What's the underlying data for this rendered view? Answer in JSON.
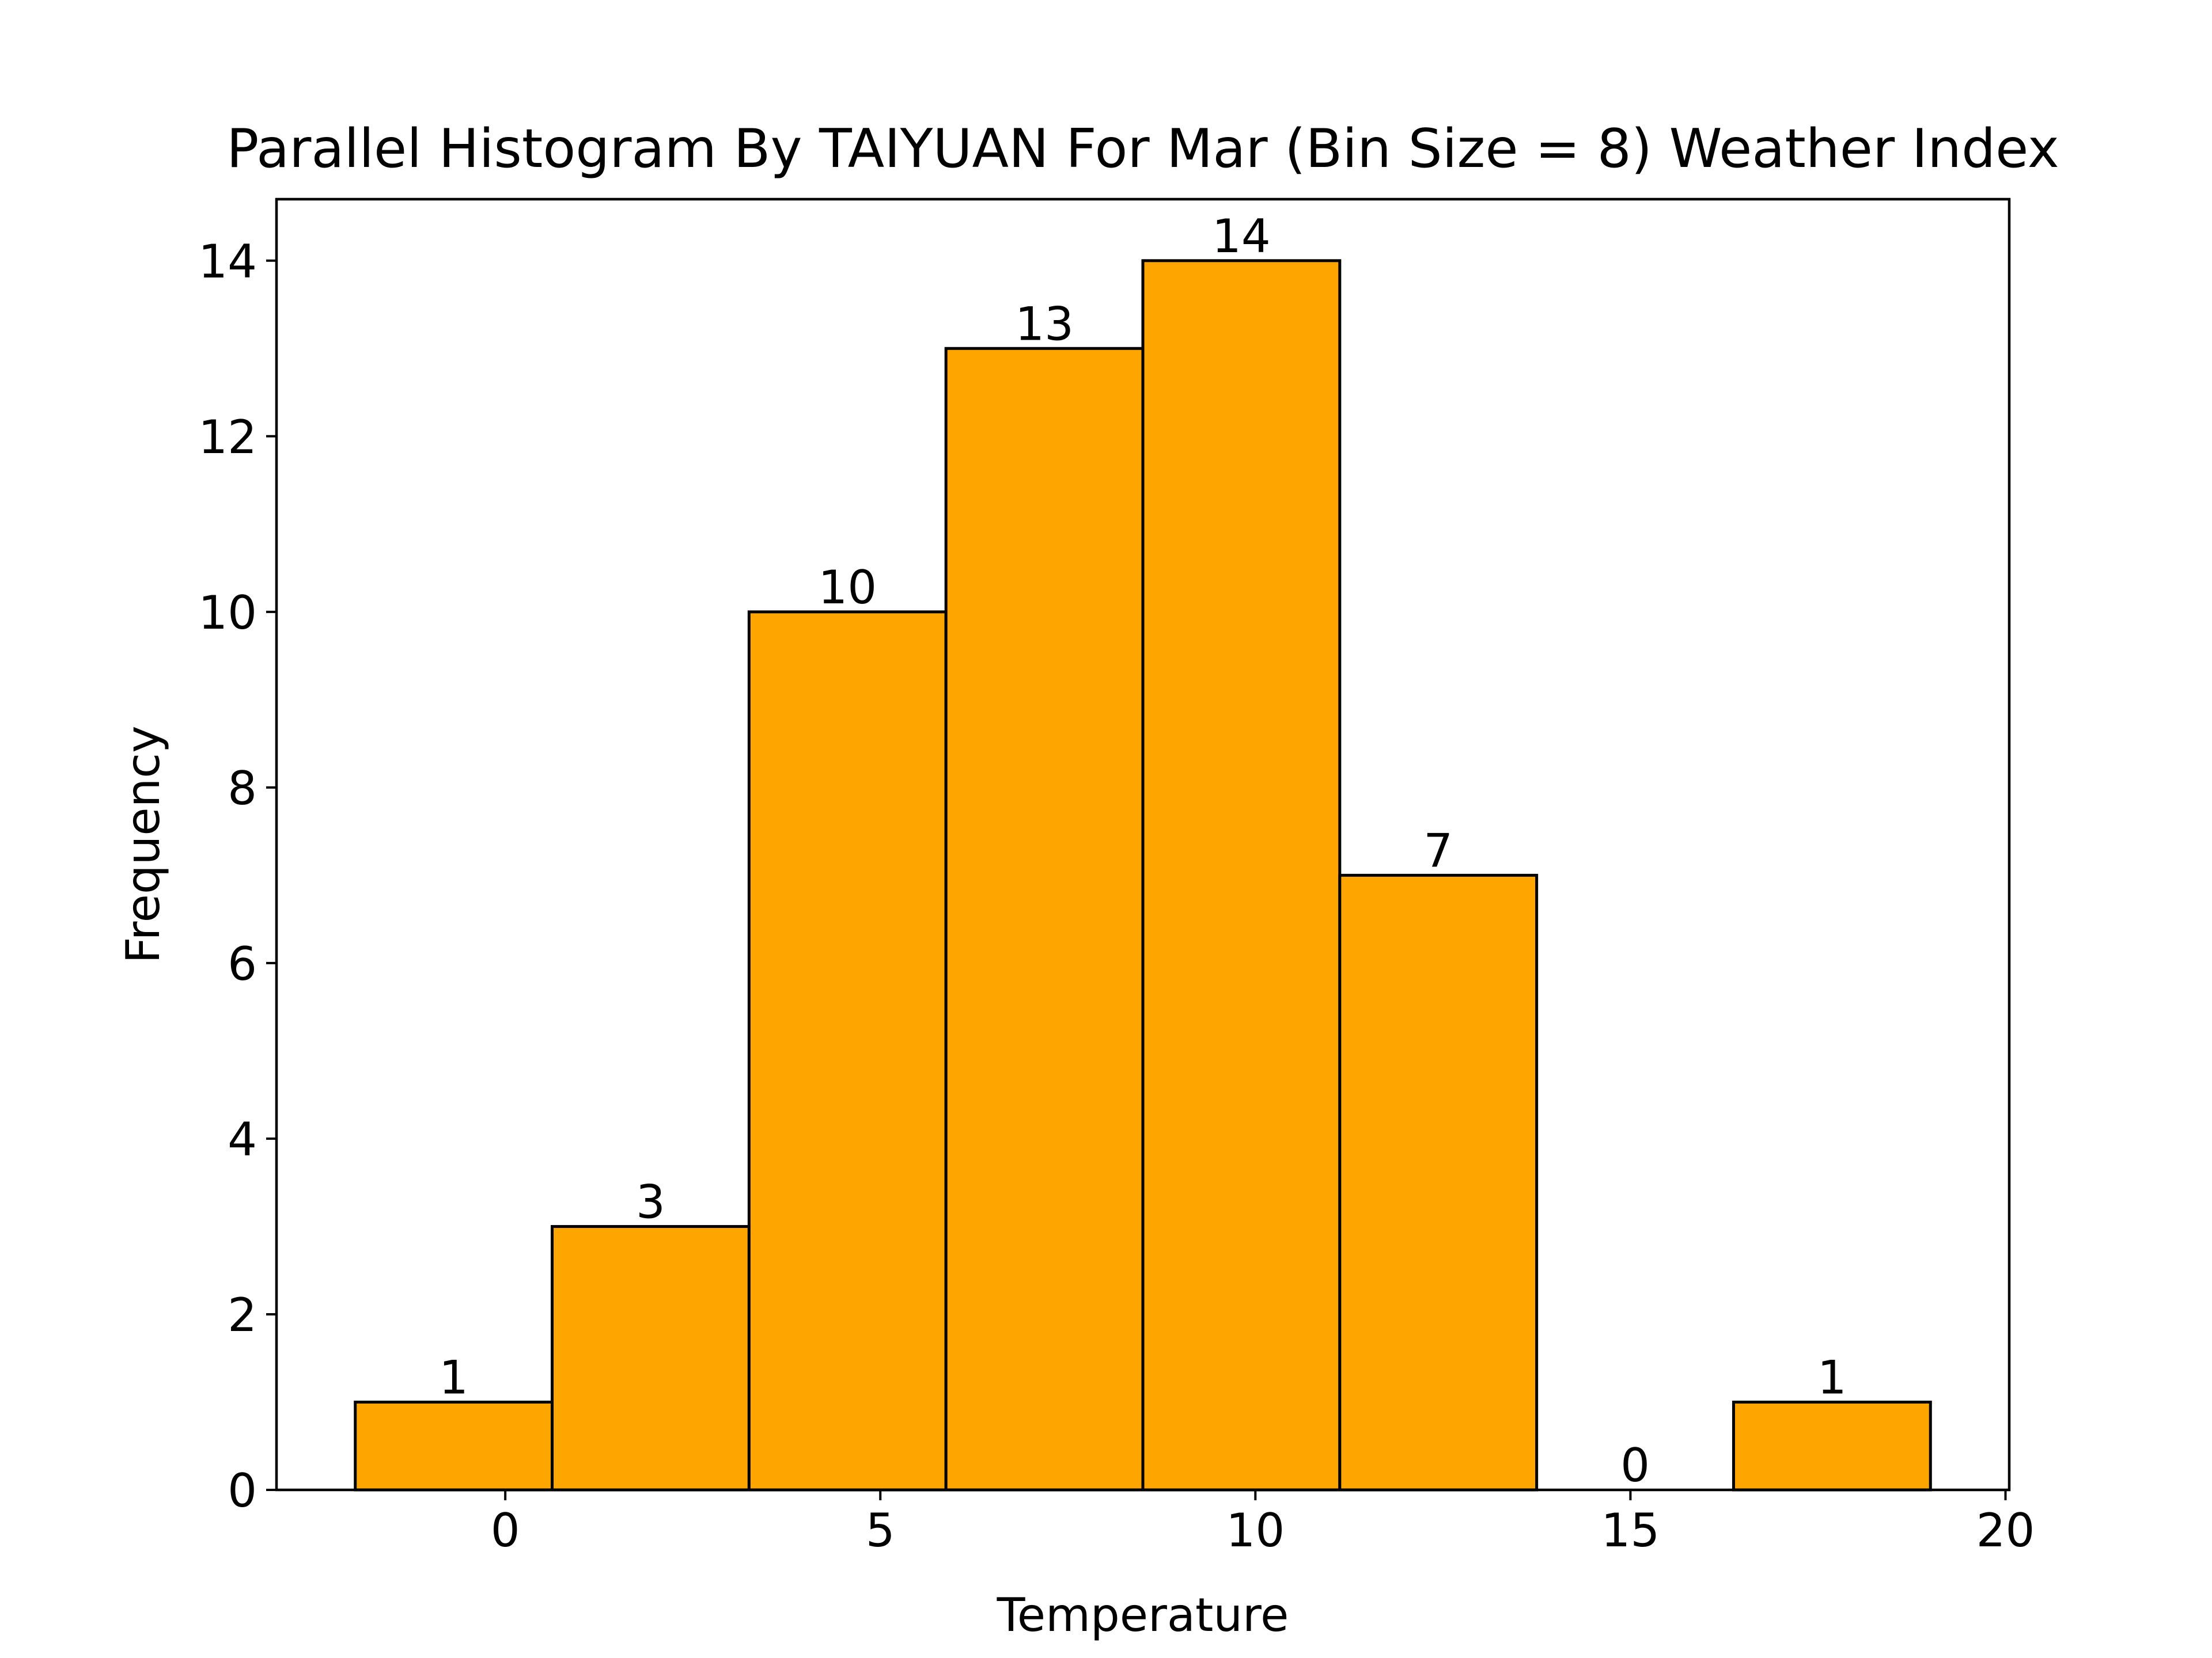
{
  "chart_data": {
    "type": "bar",
    "title": "Parallel Histogram By TAIYUAN For Mar (Bin Size = 8) Weather Index",
    "xlabel": "Temperature",
    "ylabel": "Frequency",
    "bins": [
      {
        "start": -2.0,
        "end": 0.625,
        "value": 1
      },
      {
        "start": 0.625,
        "end": 3.25,
        "value": 3
      },
      {
        "start": 3.25,
        "end": 5.875,
        "value": 10
      },
      {
        "start": 5.875,
        "end": 8.5,
        "value": 13
      },
      {
        "start": 8.5,
        "end": 11.125,
        "value": 14
      },
      {
        "start": 11.125,
        "end": 13.75,
        "value": 7
      },
      {
        "start": 13.75,
        "end": 16.375,
        "value": 0
      },
      {
        "start": 16.375,
        "end": 19.0,
        "value": 1
      }
    ],
    "bar_labels": [
      "1",
      "3",
      "10",
      "13",
      "14",
      "7",
      "0",
      "1"
    ],
    "x_ticks": [
      0,
      5,
      10,
      15,
      20
    ],
    "x_tick_labels": [
      "0",
      "5",
      "10",
      "15",
      "20"
    ],
    "y_ticks": [
      0,
      2,
      4,
      6,
      8,
      10,
      12,
      14
    ],
    "y_tick_labels": [
      "0",
      "2",
      "4",
      "6",
      "8",
      "10",
      "12",
      "14"
    ],
    "xlim": [
      -3.05,
      20.05
    ],
    "ylim": [
      0,
      14.7
    ],
    "bar_color": "#FFA500",
    "edge_color": "#000000",
    "grid": false,
    "legend": "none"
  }
}
